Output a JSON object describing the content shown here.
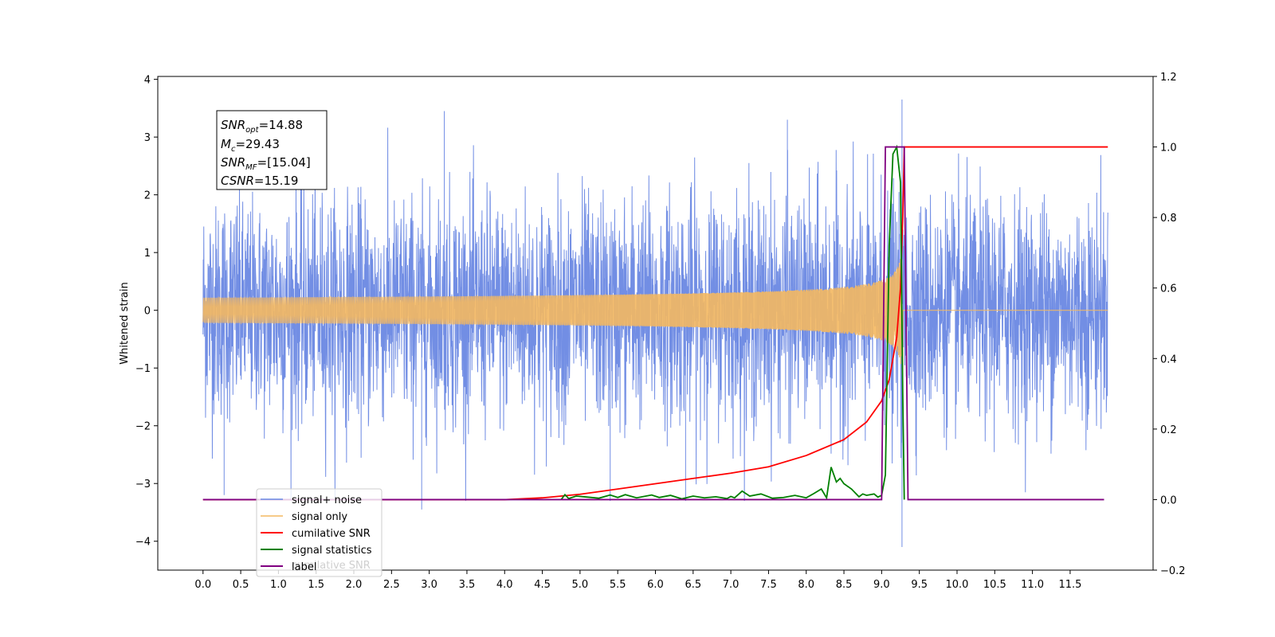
{
  "chart_data": {
    "type": "line",
    "title": "",
    "xlabel": "",
    "ylabel": "Whitened strain",
    "y2label": "",
    "xlim": [
      -0.6,
      12.6
    ],
    "ylim": [
      -4.5,
      4.05
    ],
    "y2lim": [
      -0.2,
      1.2
    ],
    "x_ticks": [
      "0.0",
      "0.5",
      "1.0",
      "1.5",
      "2.0",
      "2.5",
      "3.0",
      "3.5",
      "4.0",
      "4.5",
      "5.0",
      "5.5",
      "6.0",
      "6.5",
      "7.0",
      "7.5",
      "8.0",
      "8.5",
      "9.0",
      "9.5",
      "10.0",
      "10.5",
      "11.0",
      "11.5"
    ],
    "y_ticks": [
      "−4",
      "−3",
      "−2",
      "−1",
      "0",
      "1",
      "2",
      "3",
      "4"
    ],
    "y2_ticks": [
      "−0.2",
      "0.0",
      "0.2",
      "0.4",
      "0.6",
      "0.8",
      "1.0",
      "1.2"
    ],
    "grid": false,
    "legend_position": "lower-left",
    "annotation": {
      "lines": [
        {
          "symbol": "SNR",
          "sub": "opt",
          "value": "=14.88"
        },
        {
          "symbol": "M",
          "sub": "c",
          "value": "=29.43"
        },
        {
          "symbol": "SNR",
          "sub": "MF",
          "value": "=[15.04]"
        },
        {
          "symbol": "CSNR",
          "sub": "",
          "value": "=15.19"
        }
      ]
    },
    "series": [
      {
        "name": "signal+ noise",
        "axis": "left",
        "color": "#6a88e3",
        "description_range": [
          -4.1,
          3.65
        ],
        "x_start": 0.0,
        "x_end": 12.0,
        "peaks": [
          {
            "x": 2.9,
            "y": -3.45
          },
          {
            "x": 3.2,
            "y": 3.45
          },
          {
            "x": 7.75,
            "y": 3.3
          },
          {
            "x": 9.27,
            "y": 3.65
          },
          {
            "x": 9.27,
            "y": -4.1
          },
          {
            "x": 0.28,
            "y": -3.2
          },
          {
            "x": 6.4,
            "y": -3.3
          },
          {
            "x": 5.4,
            "y": -3.3
          }
        ]
      },
      {
        "name": "signal only",
        "axis": "left",
        "color": "#f4b860",
        "chirp": {
          "t_merge": 9.28,
          "amp_max": 1.15,
          "x_start": 0.0,
          "x_end": 12.0
        }
      },
      {
        "name": "cumilative SNR",
        "axis": "right",
        "color": "#ff0000",
        "x": [
          0.0,
          4.0,
          4.5,
          5.0,
          6.0,
          7.0,
          7.5,
          8.0,
          8.5,
          8.8,
          9.0,
          9.1,
          9.2,
          9.25,
          9.28,
          9.3,
          12.0
        ],
        "y": [
          0.0,
          0.0,
          0.005,
          0.015,
          0.045,
          0.075,
          0.093,
          0.125,
          0.17,
          0.22,
          0.28,
          0.34,
          0.46,
          0.6,
          0.8,
          1.0,
          1.0
        ]
      },
      {
        "name": "signal statistics",
        "axis": "right",
        "color": "#008000",
        "x": [
          4.75,
          4.8,
          4.85,
          4.95,
          5.1,
          5.25,
          5.4,
          5.5,
          5.6,
          5.75,
          5.95,
          6.05,
          6.2,
          6.35,
          6.5,
          6.65,
          6.8,
          6.95,
          7.0,
          7.05,
          7.15,
          7.25,
          7.4,
          7.55,
          7.7,
          7.85,
          8.0,
          8.1,
          8.2,
          8.27,
          8.33,
          8.4,
          8.45,
          8.5,
          8.6,
          8.7,
          8.75,
          8.8,
          8.9,
          8.95,
          9.0,
          9.05,
          9.1,
          9.15,
          9.2,
          9.25,
          9.28,
          9.3
        ],
        "y": [
          0.0,
          0.014,
          0.003,
          0.01,
          0.007,
          0.004,
          0.013,
          0.006,
          0.014,
          0.005,
          0.013,
          0.006,
          0.012,
          0.002,
          0.01,
          0.005,
          0.008,
          0.003,
          0.009,
          0.005,
          0.024,
          0.01,
          0.016,
          0.004,
          0.006,
          0.012,
          0.005,
          0.017,
          0.03,
          0.005,
          0.092,
          0.05,
          0.06,
          0.045,
          0.03,
          0.008,
          0.016,
          0.012,
          0.016,
          0.007,
          0.012,
          0.07,
          0.72,
          0.98,
          1.0,
          0.9,
          0.3,
          0.0
        ]
      },
      {
        "name": "label",
        "axis": "right",
        "color": "#800080",
        "x": [
          0.0,
          9.0,
          9.05,
          9.3,
          9.35,
          11.95
        ],
        "y": [
          0.0,
          0.0,
          1.0,
          1.0,
          0.0,
          0.0
        ]
      }
    ],
    "legend_overlap_text": "cumilative SNR"
  }
}
